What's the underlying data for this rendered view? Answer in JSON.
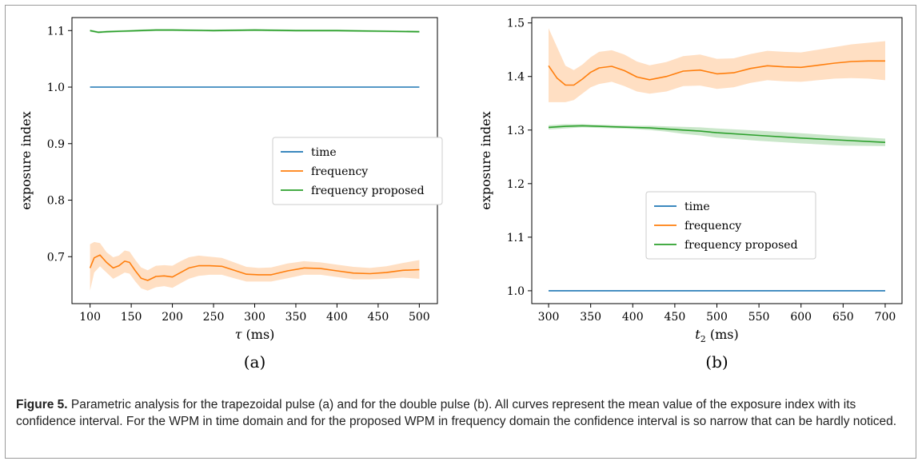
{
  "caption": {
    "label": "Figure 5.",
    "text": " Parametric analysis for the trapezoidal pulse (a) and for the double pulse (b). All curves represent the mean value of the exposure index with its confidence interval. For the WPM in time domain and for the proposed WPM in frequency domain the confidence interval is so narrow that can be hardly noticed."
  },
  "colors": {
    "time": "#1f77b4",
    "frequency": "#ff7f0e",
    "frequency_proposed": "#2ca02c",
    "band_alpha": 0.25
  },
  "chart_data": [
    {
      "type": "line",
      "panel_label": "(a)",
      "xlabel_var": "τ",
      "xlabel_unit": " (ms)",
      "ylabel": "exposure index",
      "xlim": [
        78,
        522
      ],
      "ylim": [
        0.617,
        1.123
      ],
      "xticks": [
        100,
        150,
        200,
        250,
        300,
        350,
        400,
        450,
        500
      ],
      "yticks": [
        0.7,
        0.8,
        0.9,
        1.0,
        1.1
      ],
      "ytick_labels": [
        "0.7",
        "0.8",
        "0.9",
        "1.0",
        "1.1"
      ],
      "legend_position": "center-right",
      "series": [
        {
          "name": "time",
          "color": "#1f77b4",
          "x": [
            100,
            500
          ],
          "y": [
            1.0,
            1.0
          ]
        },
        {
          "name": "frequency",
          "color": "#ff7f0e",
          "x": [
            100,
            105,
            112,
            120,
            128,
            135,
            142,
            148,
            155,
            162,
            170,
            180,
            190,
            200,
            210,
            220,
            232,
            245,
            260,
            275,
            290,
            305,
            320,
            340,
            360,
            380,
            400,
            420,
            440,
            460,
            480,
            500
          ],
          "y": [
            0.68,
            0.698,
            0.703,
            0.69,
            0.68,
            0.684,
            0.692,
            0.69,
            0.675,
            0.662,
            0.658,
            0.665,
            0.666,
            0.664,
            0.672,
            0.68,
            0.684,
            0.684,
            0.683,
            0.676,
            0.669,
            0.668,
            0.668,
            0.675,
            0.68,
            0.679,
            0.675,
            0.671,
            0.67,
            0.672,
            0.676,
            0.677
          ],
          "lower": [
            0.64,
            0.672,
            0.683,
            0.672,
            0.661,
            0.666,
            0.672,
            0.67,
            0.656,
            0.644,
            0.64,
            0.646,
            0.648,
            0.645,
            0.653,
            0.661,
            0.666,
            0.668,
            0.668,
            0.662,
            0.656,
            0.656,
            0.656,
            0.662,
            0.668,
            0.668,
            0.664,
            0.66,
            0.66,
            0.661,
            0.663,
            0.661
          ],
          "upper": [
            0.722,
            0.726,
            0.724,
            0.708,
            0.699,
            0.702,
            0.711,
            0.709,
            0.694,
            0.681,
            0.676,
            0.684,
            0.685,
            0.684,
            0.692,
            0.699,
            0.702,
            0.7,
            0.698,
            0.69,
            0.682,
            0.68,
            0.681,
            0.688,
            0.692,
            0.69,
            0.686,
            0.682,
            0.68,
            0.683,
            0.689,
            0.694
          ]
        },
        {
          "name": "frequency proposed",
          "color": "#2ca02c",
          "x": [
            100,
            110,
            120,
            140,
            160,
            180,
            200,
            250,
            300,
            350,
            400,
            450,
            500
          ],
          "y": [
            1.1,
            1.097,
            1.098,
            1.099,
            1.1,
            1.101,
            1.101,
            1.1,
            1.101,
            1.1,
            1.1,
            1.099,
            1.098
          ],
          "lower": [
            1.098,
            1.095,
            1.096,
            1.097,
            1.098,
            1.099,
            1.099,
            1.098,
            1.099,
            1.098,
            1.098,
            1.097,
            1.096
          ],
          "upper": [
            1.102,
            1.099,
            1.1,
            1.101,
            1.102,
            1.103,
            1.103,
            1.102,
            1.103,
            1.102,
            1.102,
            1.101,
            1.1
          ]
        }
      ]
    },
    {
      "type": "line",
      "panel_label": "(b)",
      "xlabel_var": "t",
      "xlabel_sub": "2",
      "xlabel_unit": " (ms)",
      "ylabel": "exposure index",
      "xlim": [
        280,
        720
      ],
      "ylim": [
        0.976,
        1.51
      ],
      "xticks": [
        300,
        350,
        400,
        450,
        500,
        550,
        600,
        650,
        700
      ],
      "yticks": [
        1.0,
        1.1,
        1.2,
        1.3,
        1.4,
        1.5
      ],
      "ytick_labels": [
        "1.0",
        "1.1",
        "1.2",
        "1.3",
        "1.4",
        "1.5"
      ],
      "legend_position": "center",
      "series": [
        {
          "name": "time",
          "color": "#1f77b4",
          "x": [
            300,
            700
          ],
          "y": [
            1.0,
            1.0
          ]
        },
        {
          "name": "frequency",
          "color": "#ff7f0e",
          "x": [
            300,
            310,
            320,
            330,
            340,
            350,
            360,
            375,
            390,
            405,
            420,
            440,
            460,
            480,
            500,
            520,
            540,
            560,
            580,
            600,
            620,
            640,
            660,
            680,
            700
          ],
          "y": [
            1.42,
            1.397,
            1.384,
            1.384,
            1.395,
            1.408,
            1.416,
            1.419,
            1.411,
            1.399,
            1.394,
            1.4,
            1.41,
            1.412,
            1.405,
            1.407,
            1.415,
            1.42,
            1.418,
            1.417,
            1.421,
            1.425,
            1.428,
            1.429,
            1.429
          ],
          "lower": [
            1.352,
            1.352,
            1.352,
            1.356,
            1.368,
            1.38,
            1.386,
            1.39,
            1.382,
            1.372,
            1.368,
            1.372,
            1.382,
            1.383,
            1.377,
            1.38,
            1.388,
            1.393,
            1.391,
            1.39,
            1.393,
            1.396,
            1.397,
            1.396,
            1.393
          ],
          "upper": [
            1.49,
            1.455,
            1.42,
            1.412,
            1.422,
            1.436,
            1.446,
            1.449,
            1.441,
            1.428,
            1.421,
            1.427,
            1.438,
            1.441,
            1.433,
            1.434,
            1.442,
            1.448,
            1.446,
            1.445,
            1.45,
            1.455,
            1.46,
            1.463,
            1.466
          ]
        },
        {
          "name": "frequency proposed",
          "color": "#2ca02c",
          "x": [
            300,
            320,
            340,
            360,
            380,
            400,
            420,
            440,
            460,
            480,
            500,
            550,
            600,
            650,
            700
          ],
          "y": [
            1.305,
            1.307,
            1.308,
            1.307,
            1.306,
            1.305,
            1.304,
            1.302,
            1.3,
            1.298,
            1.295,
            1.29,
            1.285,
            1.281,
            1.277
          ],
          "lower": [
            1.301,
            1.303,
            1.305,
            1.304,
            1.303,
            1.302,
            1.3,
            1.297,
            1.293,
            1.29,
            1.286,
            1.28,
            1.275,
            1.271,
            1.27
          ],
          "upper": [
            1.309,
            1.311,
            1.311,
            1.31,
            1.309,
            1.308,
            1.308,
            1.307,
            1.306,
            1.305,
            1.303,
            1.299,
            1.294,
            1.289,
            1.284
          ]
        }
      ]
    }
  ]
}
